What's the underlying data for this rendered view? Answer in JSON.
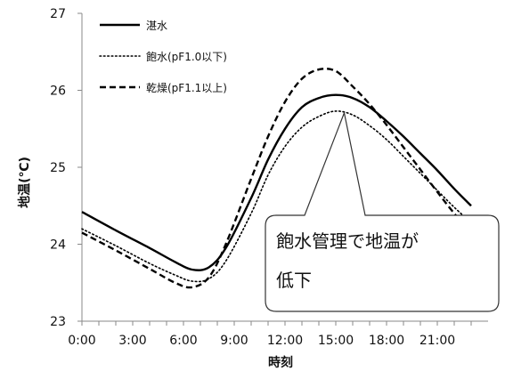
{
  "chart_data": {
    "type": "line",
    "xlabel": "時刻",
    "ylabel": "地温(℃)",
    "ylim": [
      23,
      27
    ],
    "xlim": [
      0,
      24
    ],
    "yticks": [
      "23",
      "24",
      "25",
      "26",
      "27"
    ],
    "xticks": [
      "0:00",
      "3:00",
      "6:00",
      "9:00",
      "12:00",
      "15:00",
      "18:00",
      "21:00"
    ],
    "legend_position": "top-left",
    "series": [
      {
        "name": "湛水",
        "style": "solid",
        "color": "#000000",
        "x": [
          0,
          2,
          4,
          5.5,
          6.5,
          7.5,
          8.5,
          10,
          11,
          12,
          13,
          14,
          15,
          16,
          17,
          18,
          19,
          20,
          21,
          22,
          23
        ],
        "y": [
          24.42,
          24.18,
          23.95,
          23.77,
          23.67,
          23.7,
          23.95,
          24.6,
          25.1,
          25.5,
          25.78,
          25.9,
          25.94,
          25.9,
          25.78,
          25.6,
          25.4,
          25.18,
          24.96,
          24.72,
          24.5
        ]
      },
      {
        "name": "飽水(pF1.0以下)",
        "style": "dotted",
        "color": "#000000",
        "x": [
          0,
          2,
          4,
          5.5,
          6.5,
          7.5,
          8.5,
          10,
          11,
          12,
          13,
          14,
          15,
          16,
          17,
          18,
          19,
          20,
          21,
          22,
          23
        ],
        "y": [
          24.2,
          23.98,
          23.75,
          23.6,
          23.52,
          23.55,
          23.78,
          24.4,
          24.9,
          25.27,
          25.52,
          25.66,
          25.73,
          25.68,
          25.54,
          25.36,
          25.14,
          24.92,
          24.7,
          24.48,
          24.28
        ]
      },
      {
        "name": "乾燥(pF1.1以上)",
        "style": "dashed",
        "color": "#000000",
        "x": [
          0,
          2,
          4,
          5.5,
          6.5,
          7.5,
          8.5,
          10,
          11,
          12,
          13,
          14,
          15,
          16,
          17,
          18,
          19,
          20,
          21,
          22,
          23
        ],
        "y": [
          24.15,
          23.92,
          23.68,
          23.5,
          23.44,
          23.57,
          24.0,
          24.85,
          25.4,
          25.85,
          26.15,
          26.27,
          26.25,
          26.05,
          25.82,
          25.55,
          25.26,
          24.97,
          24.68,
          24.4,
          24.15
        ]
      }
    ],
    "annotation": {
      "lines": [
        "飽水管理で地温が",
        "低下"
      ],
      "points_to": {
        "x": 15.5,
        "y": 25.73
      }
    }
  }
}
